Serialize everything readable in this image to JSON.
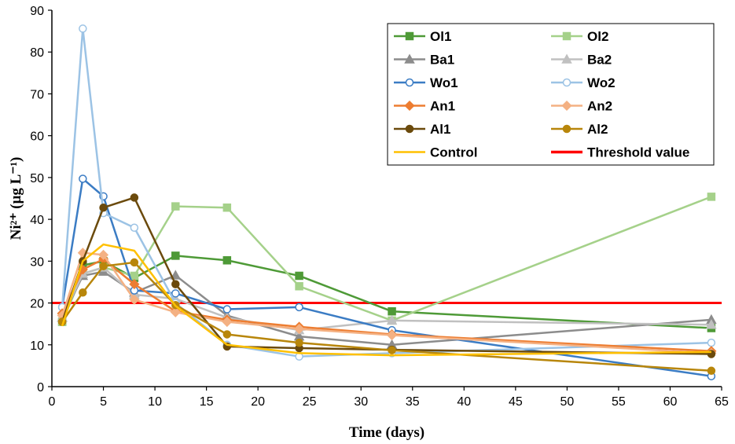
{
  "chart_data": {
    "type": "line",
    "xlabel": "Time (days)",
    "ylabel": "Ni²⁺ (µg L⁻¹)",
    "xlim": [
      0,
      65
    ],
    "ylim": [
      0,
      90
    ],
    "xticks": [
      0,
      5,
      10,
      15,
      20,
      25,
      30,
      35,
      40,
      45,
      50,
      55,
      60,
      65
    ],
    "yticks": [
      0,
      10,
      20,
      30,
      40,
      50,
      60,
      70,
      80,
      90
    ],
    "grid": false,
    "legend_position": "top-right",
    "series": [
      {
        "name": "Ol1",
        "color": "#4e9a37",
        "marker": "square",
        "marker_fill": "#4e9a37",
        "x": [
          1,
          3,
          5,
          8,
          12,
          17,
          24,
          33,
          64
        ],
        "y": [
          15.5,
          29,
          30,
          26,
          31.3,
          30.2,
          26.5,
          18,
          14
        ]
      },
      {
        "name": "Ol2",
        "color": "#a5d18a",
        "marker": "square",
        "marker_fill": "#a5d18a",
        "x": [
          1,
          3,
          5,
          8,
          12,
          17,
          24,
          33,
          64
        ],
        "y": [
          15.5,
          27,
          28.5,
          26.5,
          43.1,
          42.8,
          24,
          15.8,
          45.4
        ]
      },
      {
        "name": "Ba1",
        "color": "#8c8c8c",
        "marker": "triangle",
        "marker_fill": "#8c8c8c",
        "x": [
          1,
          3,
          5,
          8,
          12,
          17,
          24,
          33,
          64
        ],
        "y": [
          16.5,
          26.5,
          27.5,
          22.5,
          26.6,
          17,
          12,
          10,
          16
        ]
      },
      {
        "name": "Ba2",
        "color": "#c0c0c0",
        "marker": "triangle",
        "marker_fill": "#c0c0c0",
        "x": [
          1,
          3,
          5,
          8,
          12,
          17,
          24,
          33,
          64
        ],
        "y": [
          16.5,
          27,
          28.5,
          22,
          21,
          16.5,
          13.5,
          15.8,
          14.8
        ]
      },
      {
        "name": "Wo1",
        "color": "#3b7cc4",
        "marker": "circle",
        "marker_fill": "#ffffff",
        "x": [
          1,
          3,
          5,
          8,
          12,
          17,
          24,
          33,
          64
        ],
        "y": [
          19,
          49.7,
          45.5,
          23,
          22.3,
          18.5,
          19,
          13.5,
          2.5
        ]
      },
      {
        "name": "Wo2",
        "color": "#9cc3e5",
        "marker": "circle",
        "marker_fill": "#ffffff",
        "x": [
          1,
          3,
          5,
          8,
          12,
          17,
          24,
          33,
          64
        ],
        "y": [
          19,
          85.6,
          41.5,
          38,
          20,
          10,
          7.2,
          8,
          10.5
        ]
      },
      {
        "name": "An1",
        "color": "#ed7d31",
        "marker": "diamond",
        "marker_fill": "#ed7d31",
        "x": [
          1,
          3,
          5,
          8,
          12,
          17,
          24,
          33,
          64
        ],
        "y": [
          17.5,
          28,
          30.5,
          24.5,
          18,
          16,
          14.3,
          12.5,
          8.5
        ]
      },
      {
        "name": "An2",
        "color": "#f4b183",
        "marker": "diamond",
        "marker_fill": "#f4b183",
        "x": [
          1,
          3,
          5,
          8,
          12,
          17,
          24,
          33,
          64
        ],
        "y": [
          17,
          32,
          31.5,
          20.8,
          17.8,
          15.5,
          13.8,
          12.3,
          8
        ]
      },
      {
        "name": "Al1",
        "color": "#6b4a0c",
        "marker": "circle",
        "marker_fill": "#6b4a0c",
        "x": [
          1,
          3,
          5,
          8,
          12,
          17,
          24,
          33,
          64
        ],
        "y": [
          15.5,
          30,
          42.8,
          45.2,
          24.5,
          9.6,
          9.2,
          8.8,
          7.8
        ]
      },
      {
        "name": "Al2",
        "color": "#b8860b",
        "marker": "circle",
        "marker_fill": "#b8860b",
        "x": [
          1,
          3,
          5,
          8,
          12,
          17,
          24,
          33,
          64
        ],
        "y": [
          15.5,
          22.5,
          28.8,
          29.7,
          19.5,
          12.5,
          10.5,
          8.7,
          3.8
        ]
      },
      {
        "name": "Control",
        "color": "#ffc000",
        "marker": "none",
        "marker_fill": "#ffc000",
        "x": [
          1,
          3,
          5,
          8,
          12,
          17,
          24,
          33,
          64
        ],
        "y": [
          14.5,
          30,
          34,
          32.5,
          19.3,
          10,
          8,
          7.5,
          8.3
        ]
      }
    ],
    "threshold": {
      "name": "Threshold value",
      "value": 20,
      "color": "#ff0000"
    },
    "legend_order": [
      "Ol1",
      "Ol2",
      "Ba1",
      "Ba2",
      "Wo1",
      "Wo2",
      "An1",
      "An2",
      "Al1",
      "Al2",
      "Control",
      "Threshold value"
    ]
  }
}
